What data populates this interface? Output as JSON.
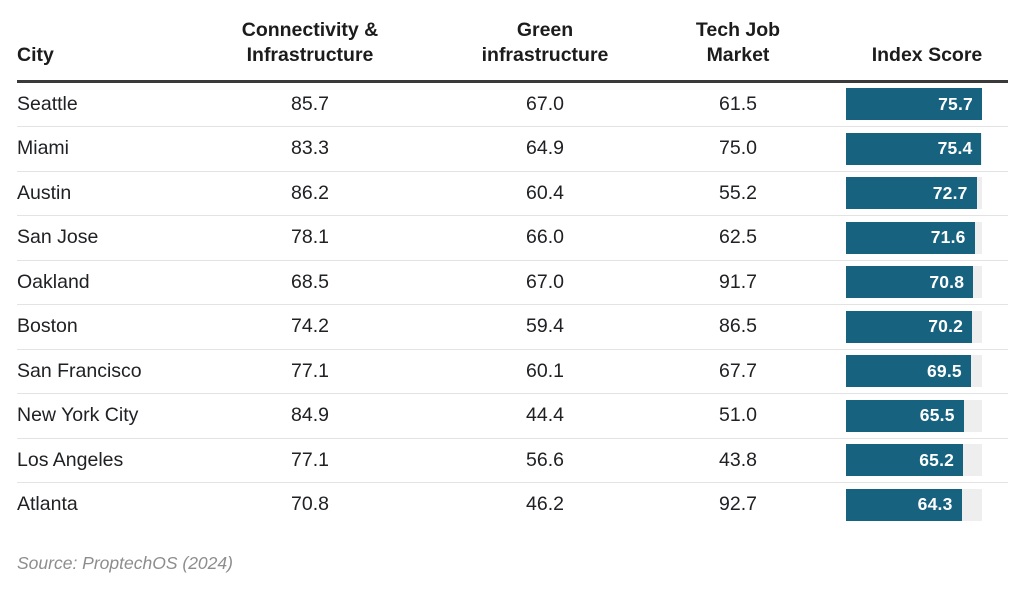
{
  "chart_data": {
    "type": "table",
    "columns": [
      {
        "key": "city",
        "label": "City",
        "align": "left"
      },
      {
        "key": "conn",
        "label": "Connectivity &\nInfrastructure",
        "align": "center"
      },
      {
        "key": "green",
        "label": "Green\ninfrastructure",
        "align": "center"
      },
      {
        "key": "tech",
        "label": "Tech Job\nMarket",
        "align": "center"
      },
      {
        "key": "index",
        "label": "Index Score",
        "align": "center"
      }
    ],
    "rows": [
      {
        "city": "Seattle",
        "conn": "85.7",
        "green": "67.0",
        "tech": "61.5",
        "index": "75.7"
      },
      {
        "city": "Miami",
        "conn": "83.3",
        "green": "64.9",
        "tech": "75.0",
        "index": "75.4"
      },
      {
        "city": "Austin",
        "conn": "86.2",
        "green": "60.4",
        "tech": "55.2",
        "index": "72.7"
      },
      {
        "city": "San Jose",
        "conn": "78.1",
        "green": "66.0",
        "tech": "62.5",
        "index": "71.6"
      },
      {
        "city": "Oakland",
        "conn": "68.5",
        "green": "67.0",
        "tech": "91.7",
        "index": "70.8"
      },
      {
        "city": "Boston",
        "conn": "74.2",
        "green": "59.4",
        "tech": "86.5",
        "index": "70.2"
      },
      {
        "city": "San Francisco",
        "conn": "77.1",
        "green": "60.1",
        "tech": "67.7",
        "index": "69.5"
      },
      {
        "city": "New York City",
        "conn": "84.9",
        "green": "44.4",
        "tech": "51.0",
        "index": "65.5"
      },
      {
        "city": "Los Angeles",
        "conn": "77.1",
        "green": "56.6",
        "tech": "43.8",
        "index": "65.2"
      },
      {
        "city": "Atlanta",
        "conn": "70.8",
        "green": "46.2",
        "tech": "92.7",
        "index": "64.3"
      }
    ],
    "bar_scale_max": 75.7,
    "legend_position": "none",
    "grid": "horizontal-row-dividers"
  },
  "colors": {
    "bar_fill": "#17627f",
    "bar_track": "#eeeeee",
    "header_text": "#1c1c1c",
    "body_text": "#202124",
    "header_rule": "#3a3a3a",
    "row_divider": "#e3e3e3",
    "source_text": "#8d8d8d",
    "background": "#ffffff"
  },
  "footer": {
    "source": "Source: ProptechOS (2024)"
  }
}
